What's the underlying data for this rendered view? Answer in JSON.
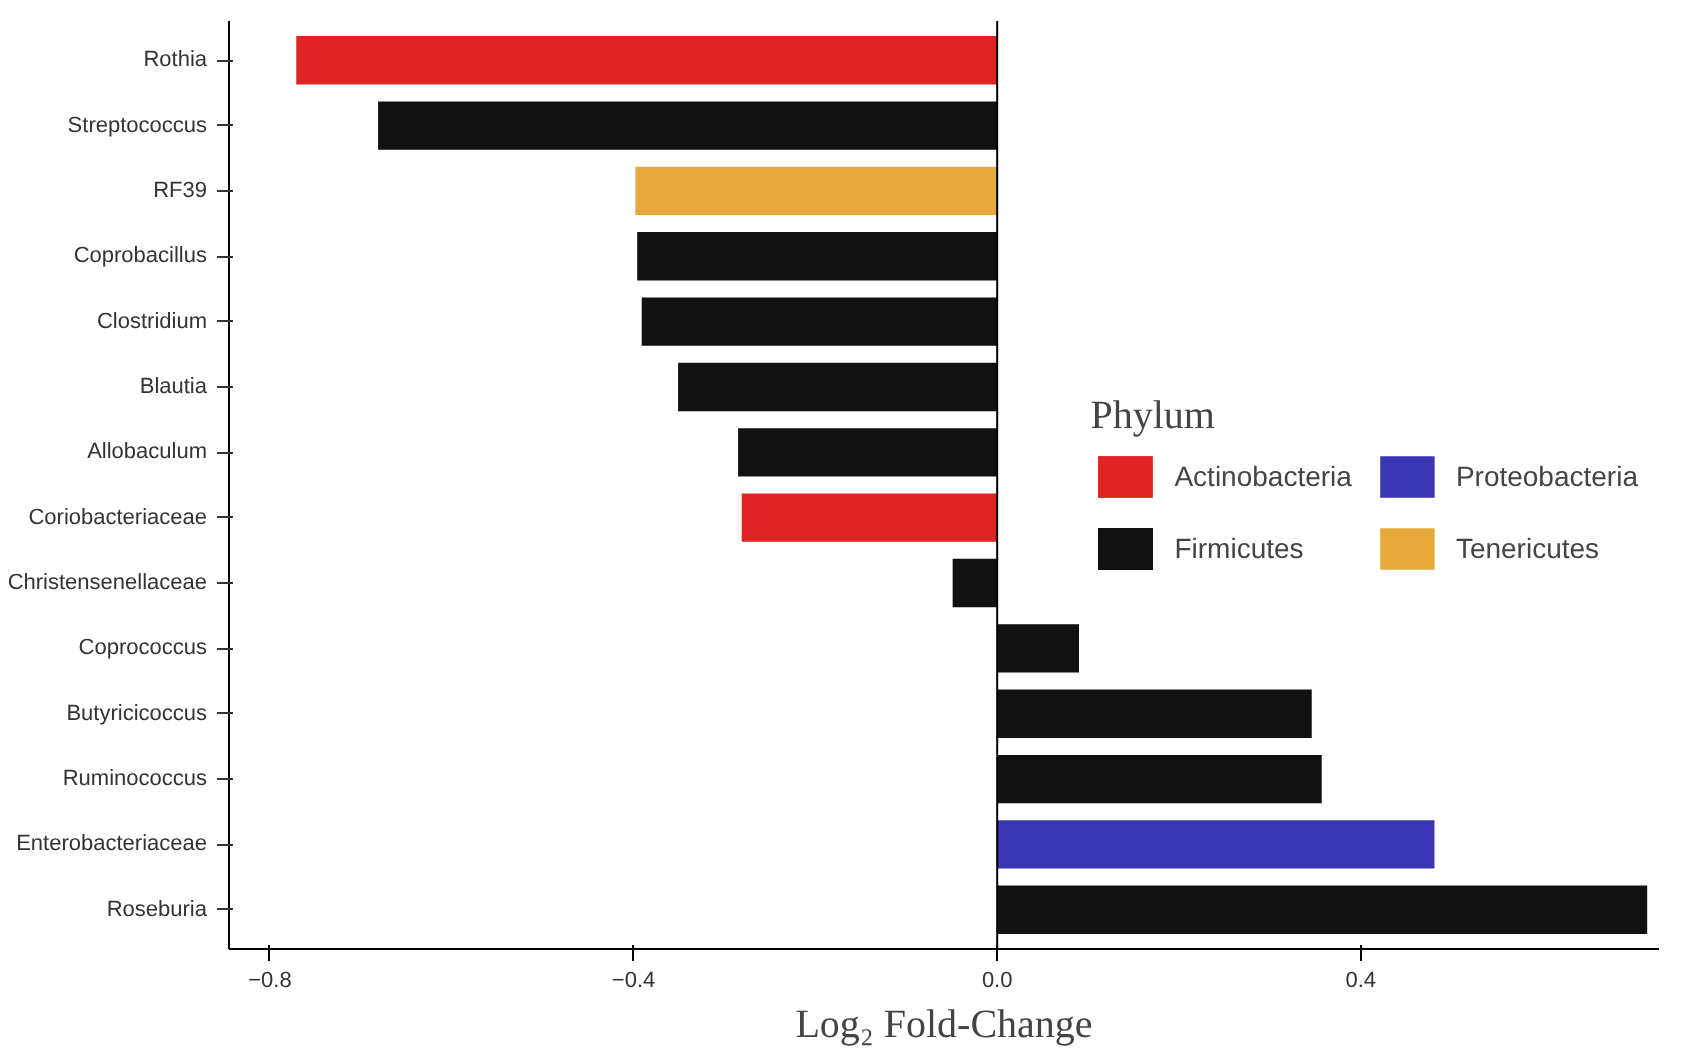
{
  "chart_data": {
    "type": "bar",
    "orientation": "horizontal",
    "xlabel": "Log₂ Fold-Change",
    "legend_title": "Phylum",
    "legend": "right",
    "grid": false,
    "categories": [
      "Rothia",
      "Streptococcus",
      "RF39",
      "Coprobacillus",
      "Clostridium",
      "Blautia",
      "Allobaculum",
      "Coriobacteriaceae",
      "Christensenellaceae",
      "Coprococcus",
      "Butyricicoccus",
      "Ruminococcus",
      "Enterobacteriaceae",
      "Roseburia"
    ],
    "xlim": [
      -0.845,
      0.728
    ],
    "xticks": [
      -0.8,
      -0.4,
      {
        "value": 0,
        "label": "0.0"
      },
      0.4
    ],
    "ref_lines": [
      {
        "axis": "x",
        "value": 0,
        "color": "#000000"
      }
    ],
    "series": [
      {
        "name": "Actinobacteria",
        "color": "#e02424",
        "values": [
          -0.771,
          null,
          null,
          null,
          null,
          null,
          null,
          -0.281,
          null,
          null,
          null,
          null,
          null,
          null
        ]
      },
      {
        "name": "Firmicutes",
        "color": "#111111",
        "values": [
          null,
          -0.681,
          null,
          -0.396,
          -0.391,
          -0.351,
          -0.285,
          null,
          -0.049,
          0.09,
          0.346,
          0.357,
          null,
          0.715
        ]
      },
      {
        "name": "Proteobacteria",
        "color": "#3a35b0",
        "values": [
          null,
          null,
          null,
          null,
          null,
          null,
          null,
          null,
          null,
          null,
          null,
          null,
          0.481,
          null
        ]
      },
      {
        "name": "Tenericutes",
        "color": "#e8a93c",
        "values": [
          null,
          null,
          -0.398,
          null,
          null,
          null,
          null,
          null,
          null,
          null,
          null,
          null,
          null,
          null
        ]
      }
    ]
  }
}
